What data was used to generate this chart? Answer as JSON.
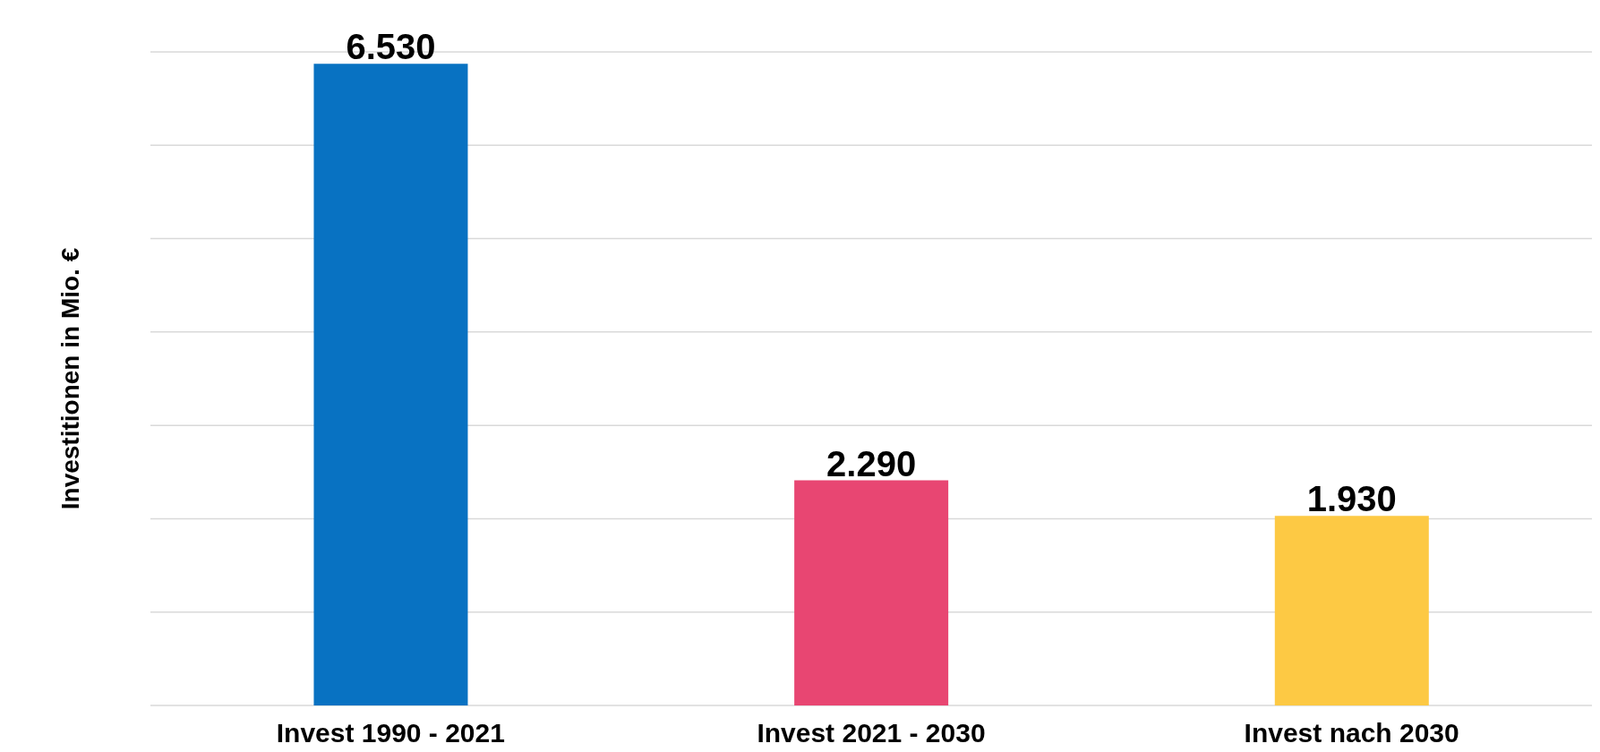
{
  "chart_data": {
    "type": "bar",
    "ylabel": "Investitionen in Mio. €",
    "categories": [
      "Invest 1990 - 2021",
      "Invest 2021 - 2030",
      "Invest nach 2030"
    ],
    "values": [
      6530,
      2290,
      1930
    ],
    "value_labels": [
      "6.530",
      "2.290",
      "1.930"
    ],
    "colors": [
      "#0872c2",
      "#e84672",
      "#fdc944"
    ],
    "tick_labels": "x",
    "grid": "y"
  }
}
